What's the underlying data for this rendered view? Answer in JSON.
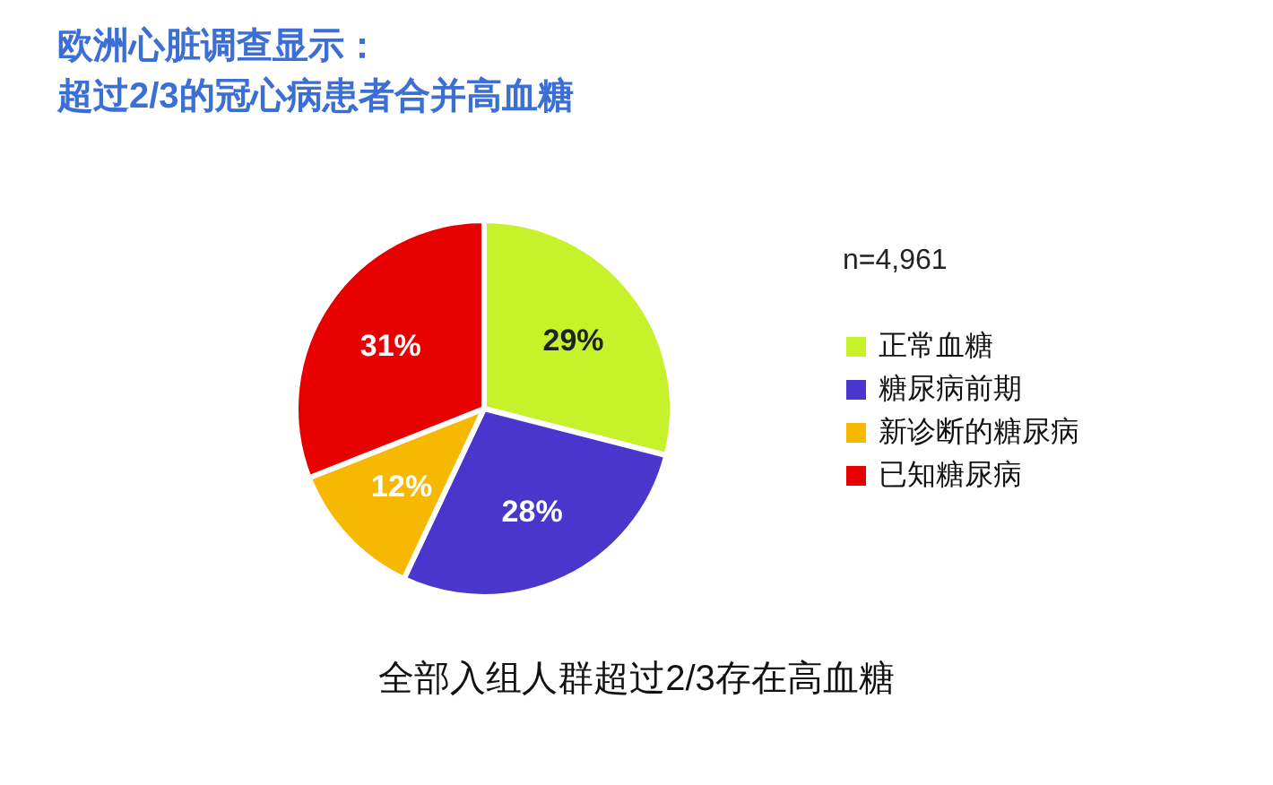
{
  "chart_data": {
    "type": "pie",
    "title": "欧洲心脏调查显示：",
    "subtitle": "超过2/3的冠心病患者合并高血糖",
    "categories": [
      "正常血糖",
      "糖尿病前期",
      "新诊断的糖尿病",
      "已知糖尿病"
    ],
    "values": [
      29,
      28,
      12,
      31
    ],
    "colors": [
      "#c6f22c",
      "#4a36cc",
      "#f6b800",
      "#e80000"
    ],
    "value_labels": [
      "29%",
      "28%",
      "12%",
      "31%"
    ],
    "legend": "right",
    "annotations": [
      "n=4,961",
      "全部入组人群超过2/3存在高血糖"
    ]
  }
}
